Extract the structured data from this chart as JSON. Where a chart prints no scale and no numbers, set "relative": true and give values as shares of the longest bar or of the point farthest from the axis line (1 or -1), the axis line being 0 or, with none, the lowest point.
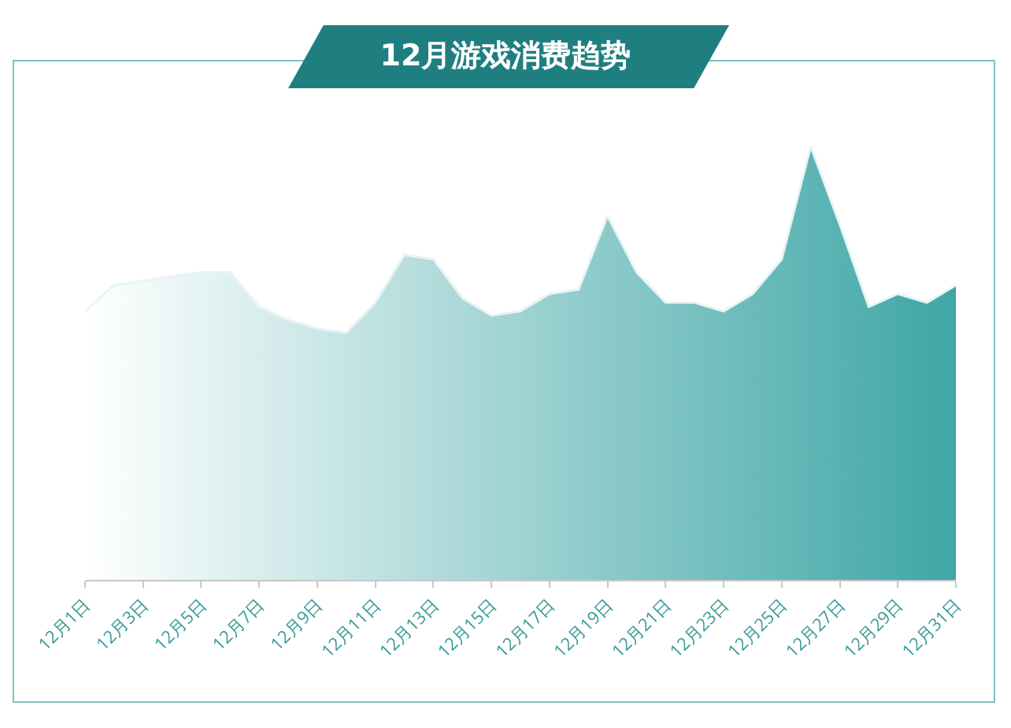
{
  "chart_data": {
    "type": "area",
    "title": "12月游戏消费趋势",
    "relative": true,
    "grid": false,
    "legend": false,
    "marker": "none",
    "categories": [
      "12月1日",
      null,
      "12月3日",
      null,
      "12月5日",
      null,
      "12月7日",
      null,
      "12月9日",
      null,
      "12月11日",
      null,
      "12月13日",
      null,
      "12月15日",
      null,
      "12月17日",
      null,
      "12月19日",
      null,
      "12月21日",
      null,
      "12月23日",
      null,
      "12月25日",
      null,
      "12月27日",
      null,
      "12月29日",
      null,
      "12月31日"
    ],
    "series": [
      {
        "color": "#3fa6a6",
        "values": [
          0.62,
          0.68,
          0.69,
          0.7,
          0.71,
          0.71,
          0.63,
          0.6,
          0.58,
          0.57,
          0.64,
          0.75,
          0.74,
          0.65,
          0.61,
          0.62,
          0.66,
          0.67,
          0.84,
          0.71,
          0.64,
          0.64,
          0.62,
          0.66,
          0.74,
          1,
          0.82,
          0.63,
          0.66,
          0.64,
          0.68
        ]
      }
    ]
  }
}
